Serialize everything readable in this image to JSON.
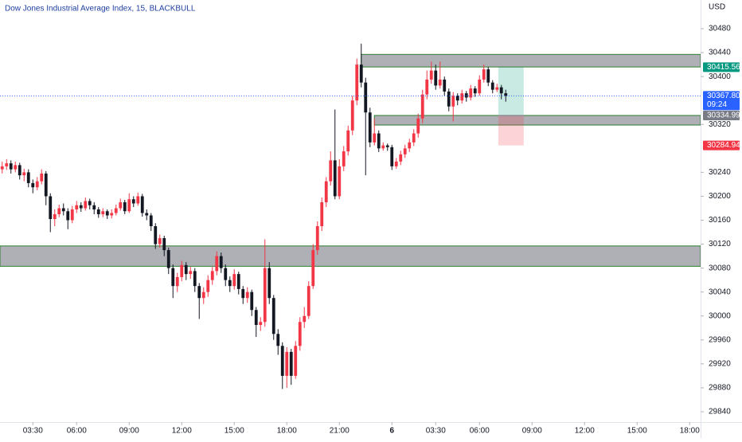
{
  "chart_data": {
    "type": "candlestick",
    "title": "Dow Jones Industrial Average Index, 15, BLACKBULL",
    "currency": "USD",
    "up_color": "#f23645",
    "down_color": "#131722",
    "xlim": [
      -0.5,
      159.5
    ],
    "ylim": [
      29822.7,
      30527.9
    ],
    "xticks": [
      {
        "value": 7,
        "label": "03:30"
      },
      {
        "value": 17,
        "label": "06:00"
      },
      {
        "value": 29,
        "label": "09:00"
      },
      {
        "value": 41,
        "label": "12:00"
      },
      {
        "value": 53,
        "label": "15:00"
      },
      {
        "value": 65,
        "label": "18:00"
      },
      {
        "value": 77,
        "label": "21:00"
      },
      {
        "value": 89,
        "label": "6"
      },
      {
        "value": 99,
        "label": "03:30"
      },
      {
        "value": 109,
        "label": "06:00"
      },
      {
        "value": 121,
        "label": "09:00"
      },
      {
        "value": 133,
        "label": "12:00"
      },
      {
        "value": 145,
        "label": "15:00"
      },
      {
        "value": 157,
        "label": "18:00"
      }
    ],
    "yticks": [
      30480,
      30440,
      30400,
      30320,
      30240,
      30200,
      30160,
      30120,
      30080,
      30040,
      30000,
      29960,
      29920,
      29880,
      29840
    ],
    "grid": false,
    "open": [
      30245,
      30250,
      30255,
      30245,
      30252,
      30235,
      30240,
      30222,
      30215,
      30225,
      30238,
      30200,
      30162,
      30170,
      30180,
      30175,
      30160,
      30178,
      30185,
      30180,
      30192,
      30185,
      30178,
      30170,
      30175,
      30168,
      30172,
      30180,
      30190,
      30175,
      30195,
      30188,
      30200,
      30172,
      30168,
      30150,
      30120,
      30130,
      30110,
      30080,
      30050,
      30065,
      30085,
      30070,
      30075,
      30050,
      30030,
      30040,
      30060,
      30075,
      30100,
      30080,
      30060,
      30050,
      30070,
      30045,
      30030,
      30040,
      30010,
      29985,
      29990,
      30080,
      30030,
      29970,
      29950,
      29900,
      29940,
      29900,
      29950,
      29990,
      30000,
      30050,
      30110,
      30150,
      30190,
      30225,
      30260,
      30200,
      30250,
      30275,
      30310,
      30360,
      30420,
      30390,
      30340,
      30290,
      30305,
      30280,
      30285,
      30282,
      30250,
      30258,
      30270,
      30280,
      30290,
      30305,
      30330,
      30370,
      30395,
      30410,
      30385,
      30395,
      30375,
      30350,
      30368,
      30360,
      30372,
      30365,
      30380,
      30372,
      30395,
      30412,
      30390,
      30378,
      30382,
      30372
    ],
    "high": [
      30258,
      30262,
      30260,
      30258,
      30256,
      30246,
      30245,
      30228,
      30232,
      30245,
      30242,
      30205,
      30178,
      30186,
      30188,
      30180,
      30184,
      30192,
      30190,
      30198,
      30196,
      30190,
      30182,
      30180,
      30178,
      30178,
      30186,
      30196,
      30194,
      30205,
      30200,
      30206,
      30204,
      30178,
      30172,
      30155,
      30136,
      30134,
      30114,
      30086,
      30072,
      30092,
      30090,
      30082,
      30080,
      30055,
      30048,
      30068,
      30082,
      30108,
      30106,
      30086,
      30066,
      30078,
      30074,
      30050,
      30048,
      30044,
      30015,
      29998,
      30128,
      30090,
      30035,
      29978,
      29956,
      29948,
      29945,
      29958,
      29998,
      30015,
      30058,
      30120,
      30158,
      30198,
      30232,
      30275,
      30345,
      30262,
      30284,
      30318,
      30368,
      30430,
      30455,
      30398,
      30348,
      30330,
      30310,
      30290,
      30288,
      30286,
      30264,
      30276,
      30286,
      30296,
      30312,
      30338,
      30378,
      30410,
      30425,
      30420,
      30425,
      30400,
      30380,
      30374,
      30372,
      30378,
      30376,
      30386,
      30384,
      30402,
      30420,
      30416,
      30394,
      30388,
      30386,
      30378
    ],
    "low": [
      30238,
      30244,
      30238,
      30240,
      30228,
      30225,
      30215,
      30205,
      30210,
      30220,
      30185,
      30140,
      30150,
      30165,
      30168,
      30145,
      30155,
      30172,
      30174,
      30176,
      30178,
      30170,
      30164,
      30165,
      30162,
      30163,
      30168,
      30176,
      30170,
      30172,
      30182,
      30184,
      30166,
      30160,
      30142,
      30112,
      30114,
      30100,
      30070,
      30030,
      30040,
      30058,
      30060,
      30062,
      30040,
      29995,
      30020,
      30032,
      30052,
      30068,
      30072,
      30050,
      30040,
      30044,
      30036,
      30020,
      30022,
      30000,
      29965,
      29975,
      29982,
      30020,
      29960,
      29935,
      29878,
      29880,
      29885,
      29895,
      29942,
      29980,
      29995,
      30045,
      30102,
      30142,
      30182,
      30218,
      30195,
      30195,
      30242,
      30268,
      30302,
      30352,
      30382,
      30235,
      30282,
      30285,
      30274,
      30276,
      30276,
      30244,
      30246,
      30252,
      30264,
      30274,
      30284,
      30298,
      30322,
      30362,
      30388,
      30378,
      30380,
      30368,
      30342,
      30325,
      30352,
      30355,
      30358,
      30360,
      30366,
      30368,
      30390,
      30384,
      30372,
      30374,
      30362,
      30358
    ],
    "close": [
      30250,
      30255,
      30245,
      30252,
      30235,
      30240,
      30222,
      30215,
      30225,
      30238,
      30200,
      30162,
      30170,
      30180,
      30175,
      30160,
      30178,
      30185,
      30180,
      30192,
      30185,
      30178,
      30170,
      30175,
      30168,
      30172,
      30180,
      30190,
      30175,
      30195,
      30188,
      30200,
      30172,
      30168,
      30150,
      30120,
      30130,
      30110,
      30080,
      30050,
      30065,
      30085,
      30070,
      30075,
      30050,
      30030,
      30040,
      30060,
      30075,
      30100,
      30080,
      30060,
      30050,
      30070,
      30045,
      30030,
      30040,
      30010,
      29985,
      29990,
      30080,
      30030,
      29970,
      29950,
      29900,
      29940,
      29900,
      29950,
      29990,
      30000,
      30050,
      30110,
      30150,
      30190,
      30225,
      30260,
      30200,
      30250,
      30275,
      30310,
      30360,
      30420,
      30390,
      30340,
      30290,
      30305,
      30280,
      30285,
      30282,
      30250,
      30258,
      30270,
      30280,
      30290,
      30305,
      30330,
      30370,
      30395,
      30410,
      30385,
      30395,
      30375,
      30350,
      30368,
      30360,
      30372,
      30365,
      30380,
      30372,
      30395,
      30412,
      30390,
      30378,
      30382,
      30372,
      30367.8
    ],
    "zones": [
      {
        "top": 30437,
        "bottom": 30416,
        "start": 82
      },
      {
        "top": 30335,
        "bottom": 30319,
        "start": 85
      },
      {
        "top": 30117,
        "bottom": 30083,
        "start": -0.5
      }
    ],
    "position": {
      "target": 30415.56,
      "entry": 30334.99,
      "stop": 30284.94,
      "start": 113.3,
      "end": 119.1
    },
    "last_price": {
      "value": 30367.8,
      "label": "30367.80"
    },
    "countdown": "09:24"
  }
}
